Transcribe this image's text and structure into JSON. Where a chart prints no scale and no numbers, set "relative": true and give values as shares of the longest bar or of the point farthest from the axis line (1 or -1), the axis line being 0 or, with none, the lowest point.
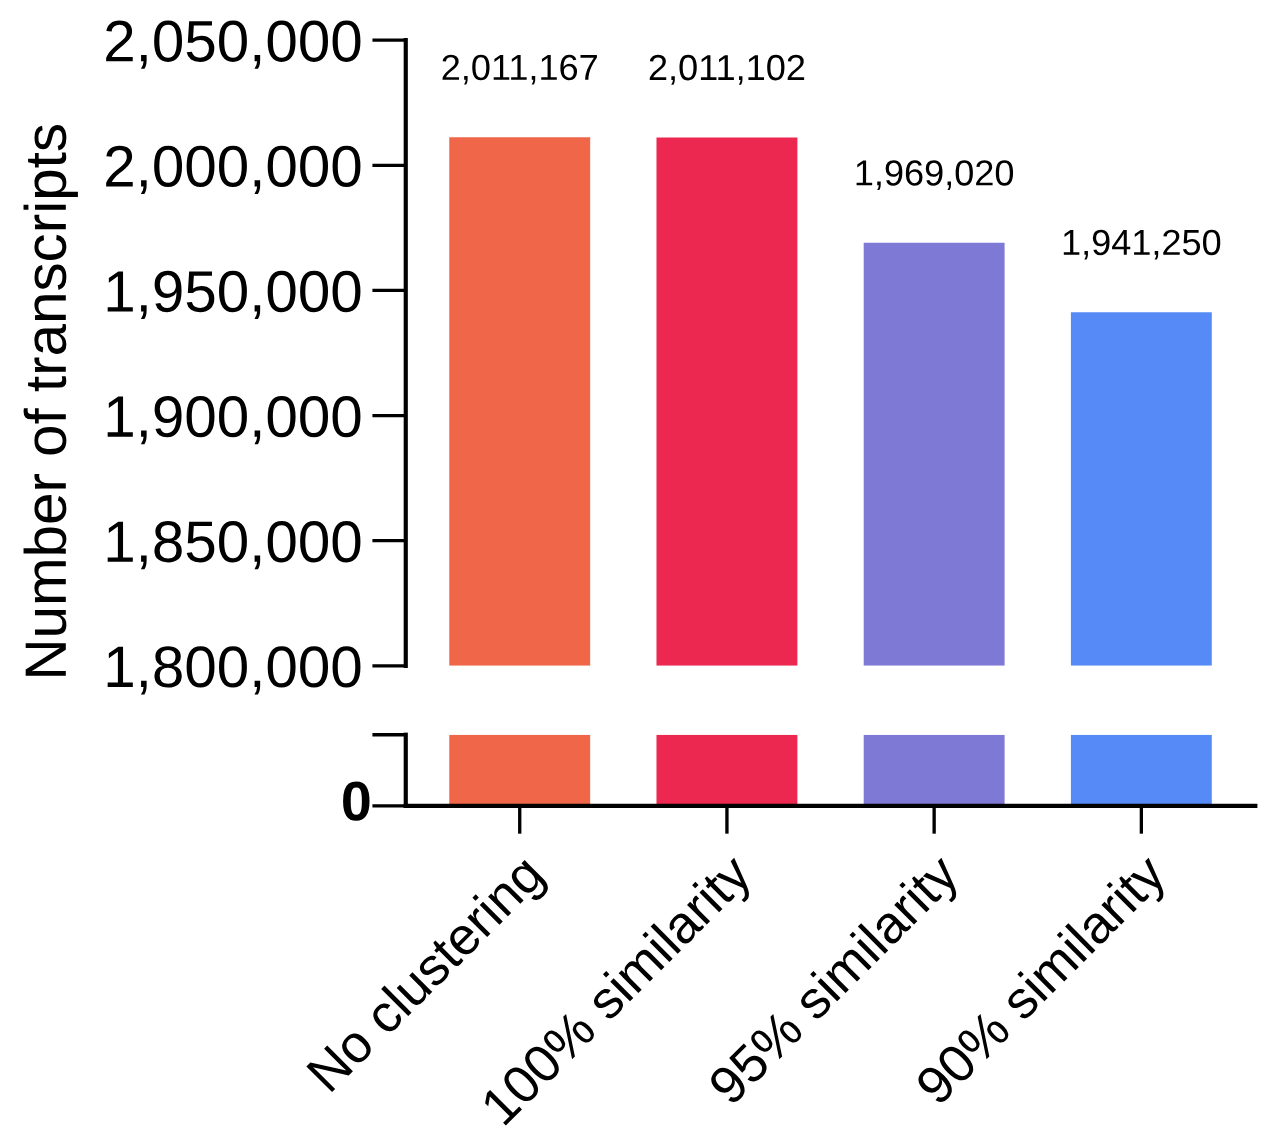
{
  "chart_data": [
    {
      "type": "bar",
      "ylabel": "Number of transcripts",
      "categories": [
        null,
        null,
        null,
        null
      ],
      "values": [
        2011167,
        2011102,
        1969020,
        1941250
      ],
      "colors": [
        "#ef6648",
        "#ec2850",
        "#7f79d6",
        "#568bf7"
      ],
      "ylim": [
        1800000,
        2050000
      ],
      "yticks": [
        {
          "value": 1800000,
          "label": "1,800,000"
        },
        {
          "value": 1850000,
          "label": "1,850,000"
        },
        {
          "value": 1900000,
          "label": "1,900,000"
        },
        {
          "value": 1950000,
          "label": "1,950,000"
        },
        {
          "value": 2000000,
          "label": "2,000,000"
        },
        {
          "value": 2050000,
          "label": "2,050,000"
        }
      ],
      "value_labels": [
        "2,011,167",
        "2,011,102",
        "1,969,020",
        "1,941,250"
      ],
      "tick_labels": "y",
      "grid": false,
      "legend": false
    },
    {
      "type": "bar",
      "categories": [
        "No clustering",
        "100% similarity",
        "95% similarity",
        "90% similarity"
      ],
      "values": [
        1,
        1,
        1,
        1
      ],
      "relative": true,
      "colors": [
        "#ef6648",
        "#ec2850",
        "#7f79d6",
        "#568bf7"
      ],
      "annotations": [
        "0"
      ],
      "tick_labels": "x",
      "grid": false,
      "legend": false
    }
  ]
}
